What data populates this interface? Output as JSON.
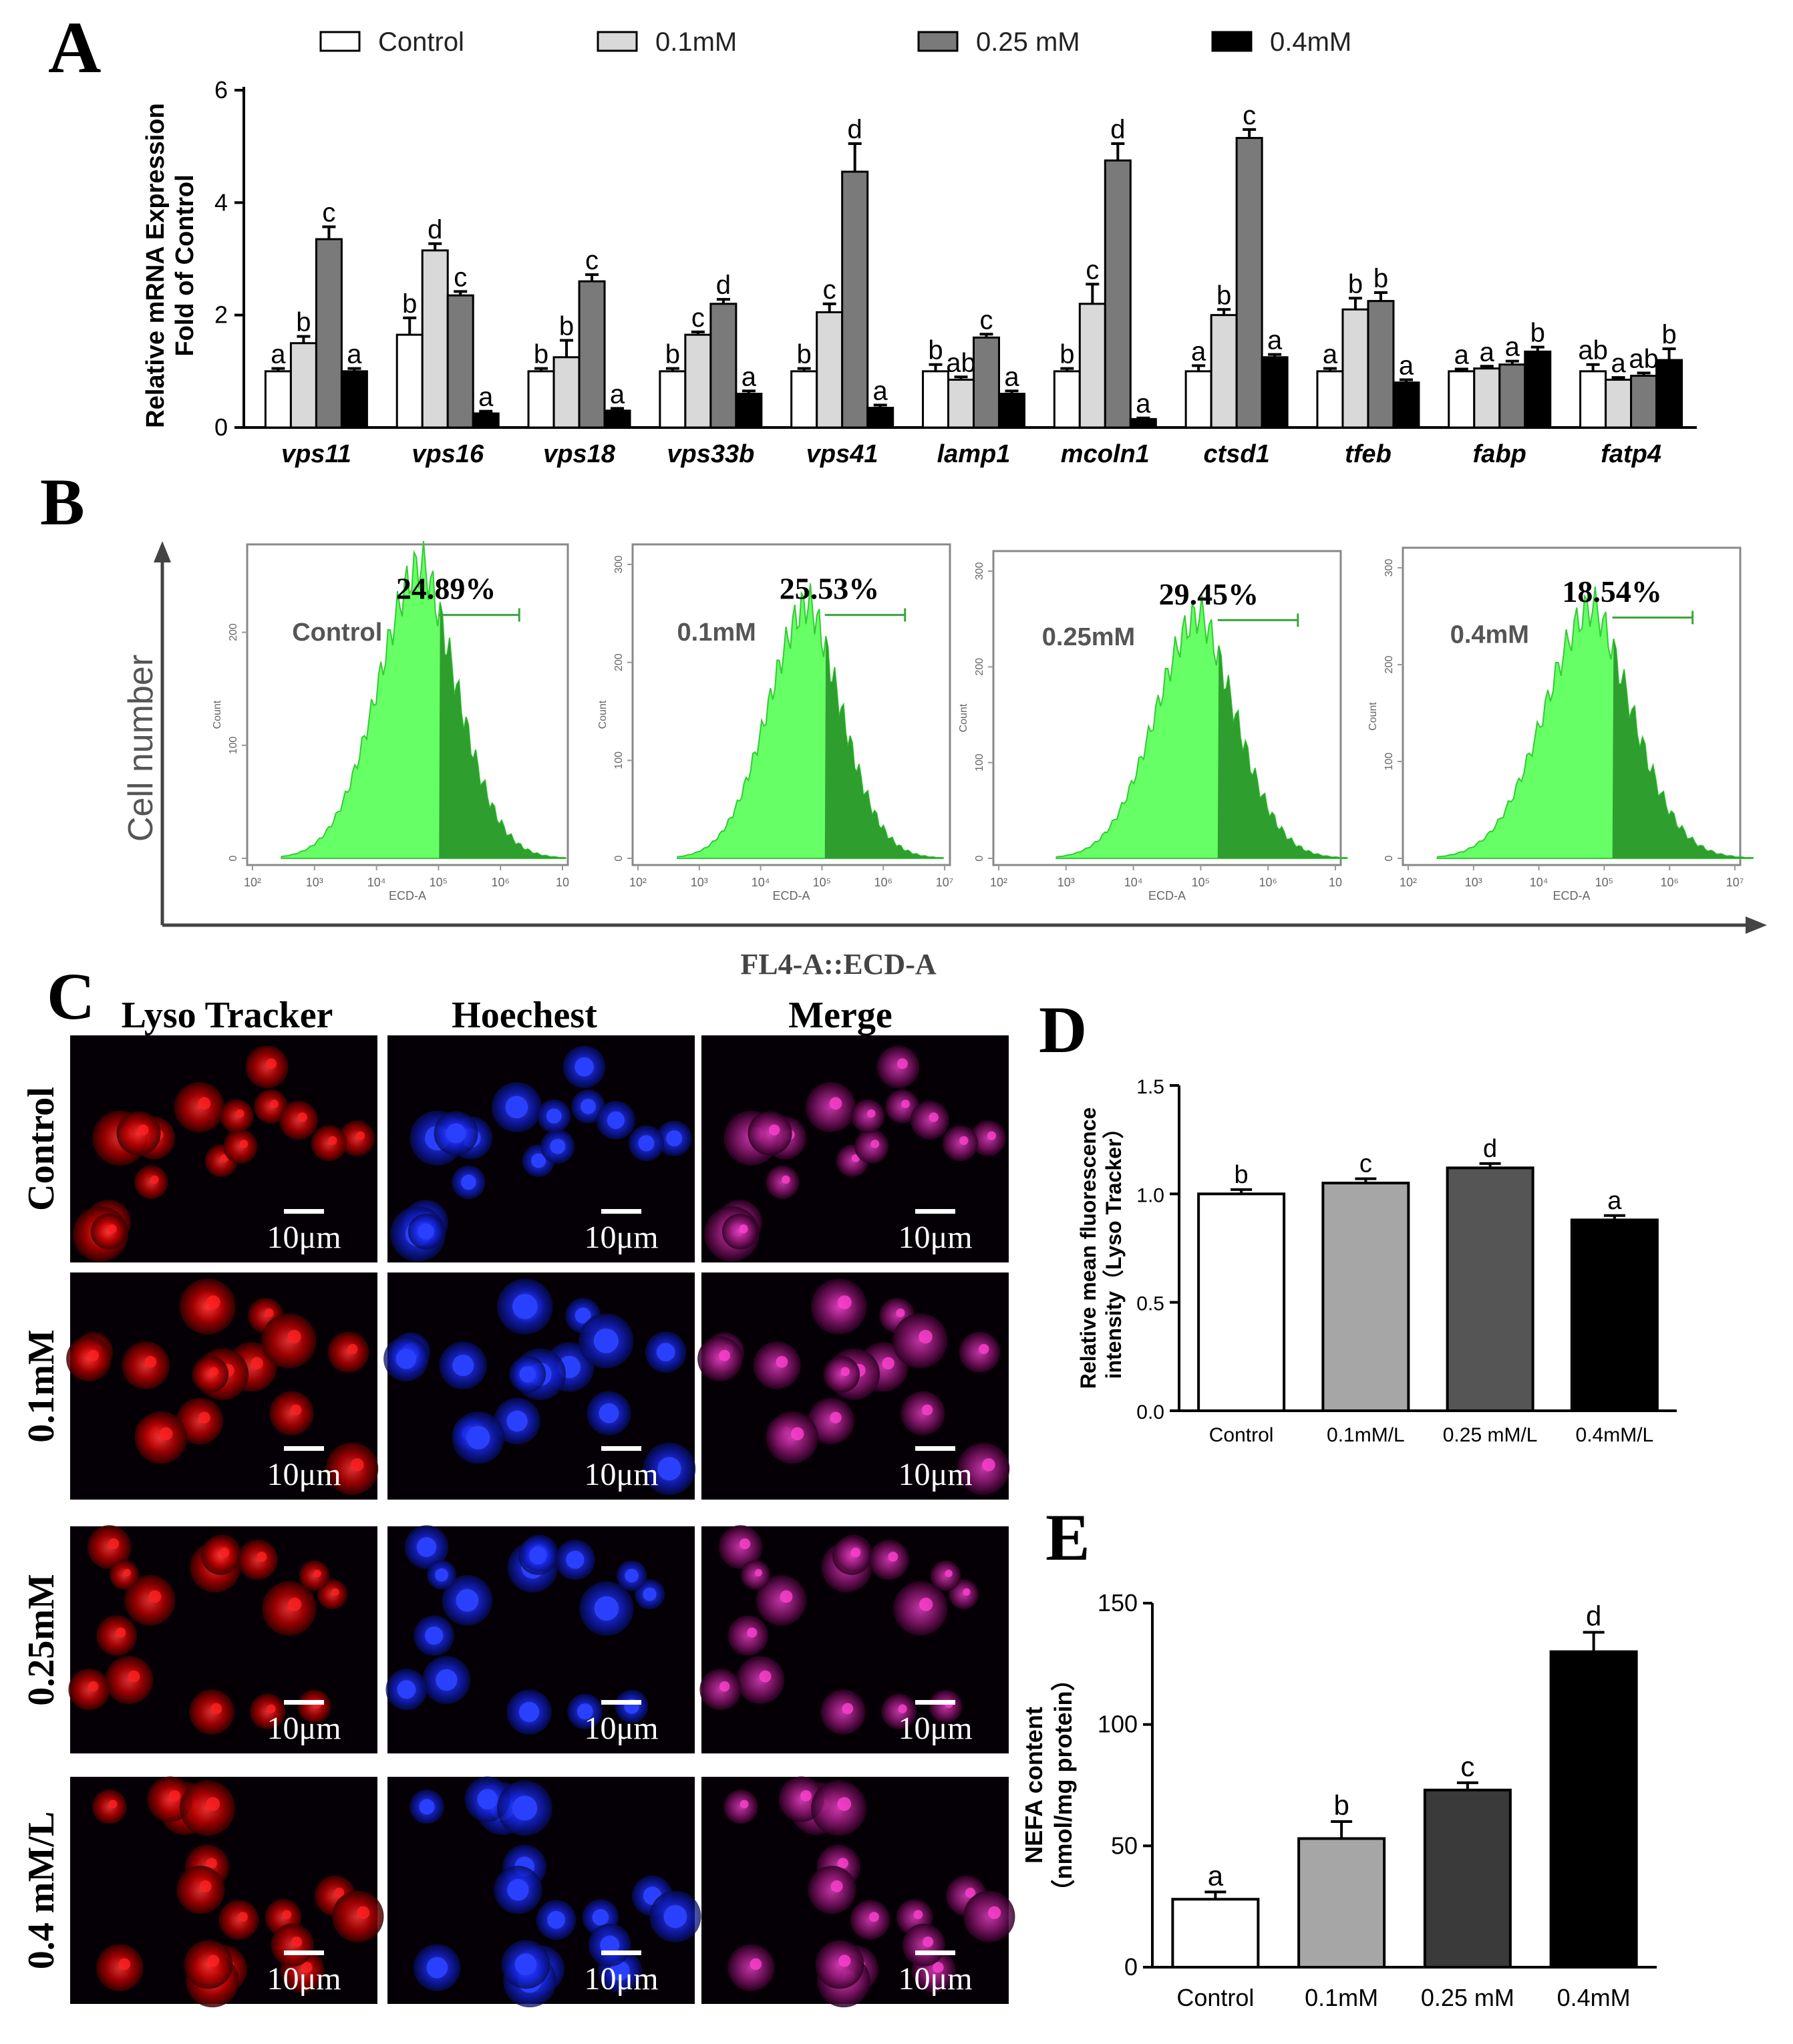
{
  "panels": {
    "A": "A",
    "B": "B",
    "C": "C",
    "D": "D",
    "E": "E"
  },
  "colors": {
    "control": "#ffffff",
    "c01": "#d9d9d9",
    "c025": "#7a7a7a",
    "c04": "#000000",
    "d01": "#a6a6a6",
    "d025": "#555555",
    "e01": "#a6a6a6",
    "e025": "#3a3a3a",
    "flowLight": "#66ff66",
    "flowDark": "#2e9e2e",
    "lyso": "#d80000",
    "hoechst": "#1a2cff",
    "merge": "#b02888"
  },
  "chart_data": [
    {
      "id": "A",
      "type": "bar",
      "title": "",
      "ylabel": "Relative mRNA Expression Fold of Control",
      "ylabel_lines": [
        "Relative mRNA Expression",
        "Fold of Control"
      ],
      "ylim": [
        0,
        6
      ],
      "yticks": [
        0,
        2,
        4,
        6
      ],
      "categories": [
        "vps11",
        "vps16",
        "vps18",
        "vps33b",
        "vps41",
        "lamp1",
        "mcoln1",
        "ctsd1",
        "tfeb",
        "fabp",
        "fatp4"
      ],
      "series": [
        {
          "name": "Control",
          "color_key": "control",
          "values": [
            1.0,
            1.65,
            1.0,
            1.0,
            1.0,
            1.0,
            1.0,
            1.0,
            1.0,
            1.0,
            1.0
          ],
          "errors": [
            0.05,
            0.3,
            0.05,
            0.05,
            0.05,
            0.12,
            0.05,
            0.1,
            0.05,
            0.04,
            0.12
          ],
          "letters": [
            "a",
            "b",
            "b",
            "b",
            "b",
            "b",
            "b",
            "a",
            "a",
            "a",
            "ab"
          ]
        },
        {
          "name": "0.1mM",
          "color_key": "c01",
          "values": [
            1.5,
            3.15,
            1.25,
            1.65,
            2.05,
            0.85,
            2.2,
            2.0,
            2.1,
            1.05,
            0.85
          ],
          "errors": [
            0.12,
            0.12,
            0.3,
            0.05,
            0.15,
            0.05,
            0.35,
            0.1,
            0.2,
            0.04,
            0.04
          ],
          "letters": [
            "b",
            "d",
            "b",
            "c",
            "c",
            "ab",
            "c",
            "b",
            "b",
            "a",
            "a"
          ]
        },
        {
          "name": "0.25 mM",
          "color_key": "c025",
          "values": [
            3.35,
            2.35,
            2.6,
            2.2,
            4.55,
            1.6,
            4.75,
            5.15,
            2.25,
            1.12,
            0.92
          ],
          "errors": [
            0.22,
            0.07,
            0.12,
            0.08,
            0.5,
            0.06,
            0.3,
            0.15,
            0.15,
            0.06,
            0.05
          ],
          "letters": [
            "c",
            "c",
            "c",
            "d",
            "d",
            "c",
            "d",
            "c",
            "b",
            "a",
            "ab"
          ]
        },
        {
          "name": "0.4mM",
          "color_key": "c04",
          "values": [
            1.0,
            0.25,
            0.3,
            0.6,
            0.35,
            0.6,
            0.15,
            1.25,
            0.8,
            1.35,
            1.2
          ],
          "errors": [
            0.05,
            0.04,
            0.04,
            0.05,
            0.05,
            0.05,
            0.02,
            0.05,
            0.05,
            0.08,
            0.2
          ],
          "letters": [
            "a",
            "a",
            "a",
            "a",
            "a",
            "a",
            "a",
            "a",
            "a",
            "b",
            "b"
          ]
        }
      ],
      "legend": [
        "Control",
        "0.1mM",
        "0.25 mM",
        "0.4mM"
      ]
    },
    {
      "id": "B",
      "type": "histogram",
      "ylabel": "Cell number",
      "xlabel": "FL4-A::ECD-A",
      "plots": [
        {
          "label": "Control",
          "percent": "24.89%",
          "xaxis_label": "ECD-A",
          "yaxis_label": "Count",
          "xticks": [
            "10²",
            "10³",
            "10⁴",
            "10⁵",
            "10⁶",
            "10"
          ],
          "yticks": [
            "0",
            "100",
            "200"
          ],
          "ymax": 260,
          "hist_ymax": 260,
          "peak": 0.55,
          "width": 0.36
        },
        {
          "label": "0.1mM",
          "percent": "25.53%",
          "xaxis_label": "ECD-A",
          "yaxis_label": "Count",
          "xticks": [
            "10²",
            "10³",
            "10⁴",
            "10⁵",
            "10⁶",
            "10⁷"
          ],
          "yticks": [
            "0",
            "100",
            "200",
            "300"
          ],
          "ymax": 300,
          "hist_ymax": 260,
          "peak": 0.56,
          "width": 0.34
        },
        {
          "label": "0.25mM",
          "percent": "29.45%",
          "xaxis_label": "ECD-A",
          "yaxis_label": "Count",
          "xticks": [
            "10²",
            "10³",
            "10⁴",
            "10⁵",
            "10⁶",
            "10"
          ],
          "yticks": [
            "0",
            "100",
            "200",
            "300"
          ],
          "ymax": 300,
          "hist_ymax": 255,
          "peak": 0.6,
          "width": 0.34
        },
        {
          "label": "0.4mM",
          "percent": "18.54%",
          "xaxis_label": "ECD-A",
          "yaxis_label": "Count",
          "xticks": [
            "10²",
            "10³",
            "10⁴",
            "10⁵",
            "10⁶",
            "10⁷"
          ],
          "yticks": [
            "0",
            "100",
            "200",
            "300"
          ],
          "ymax": 300,
          "hist_ymax": 260,
          "peak": 0.57,
          "width": 0.38
        }
      ]
    },
    {
      "id": "D",
      "type": "bar",
      "ylabel": "Relative mean fluorescence intensity (Lyso Tracker)",
      "ylabel_lines": [
        "Relative mean fluorescence",
        "intensity（Lyso Tracker）"
      ],
      "ylim": [
        0,
        1.5
      ],
      "yticks": [
        "0.0",
        "0.5",
        "1.0",
        "1.5"
      ],
      "ytick_values": [
        0,
        0.5,
        1.0,
        1.5
      ],
      "categories": [
        "Control",
        "0.1mM/L",
        "0.25 mM/L",
        "0.4mM/L"
      ],
      "values": [
        1.0,
        1.05,
        1.12,
        0.88
      ],
      "errors": [
        0.02,
        0.02,
        0.02,
        0.02
      ],
      "letters": [
        "b",
        "c",
        "d",
        "a"
      ],
      "color_keys": [
        "control",
        "d01",
        "d025",
        "c04"
      ]
    },
    {
      "id": "E",
      "type": "bar",
      "ylabel": "NEFA content (nmol/mg protein)",
      "ylabel_lines": [
        "NEFA content",
        "（nmol/mg protein）"
      ],
      "ylim": [
        0,
        150
      ],
      "yticks": [
        "0",
        "50",
        "100",
        "150"
      ],
      "ytick_values": [
        0,
        50,
        100,
        150
      ],
      "categories": [
        "Control",
        "0.1mM",
        "0.25 mM",
        "0.4mM"
      ],
      "values": [
        28,
        53,
        73,
        130
      ],
      "errors": [
        3,
        7,
        3,
        8
      ],
      "letters": [
        "a",
        "b",
        "c",
        "d"
      ],
      "color_keys": [
        "control",
        "e01",
        "e025",
        "c04"
      ]
    }
  ],
  "micro": {
    "columns": [
      "Lyso  Tracker",
      "Hoechest",
      "Merge"
    ],
    "rows": [
      "Control",
      "0.1mM",
      "0.25mM",
      "0.4 mM/L"
    ],
    "scale": "10μm"
  }
}
